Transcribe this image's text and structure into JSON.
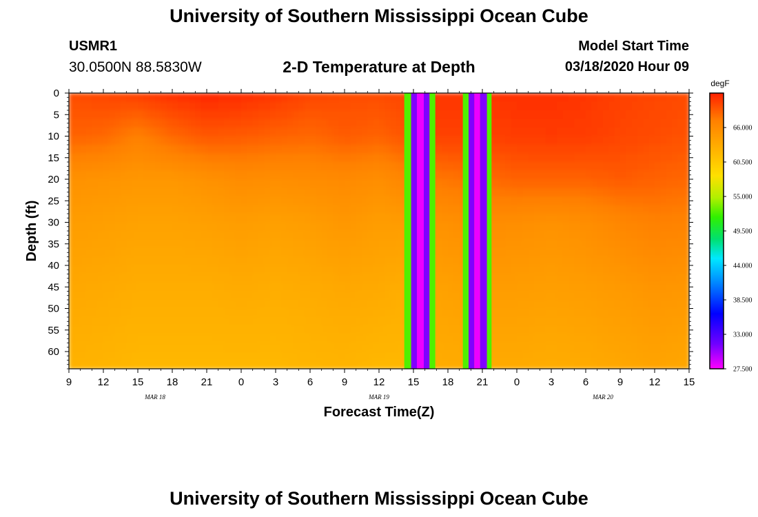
{
  "header": {
    "title": "University of Southern Mississippi Ocean Cube",
    "station_id": "USMR1",
    "station_coords": "30.0500N 88.5830W",
    "plot_title": "2-D Temperature at Depth",
    "model_start_label": "Model Start Time",
    "model_start_value": "03/18/2020 Hour 09"
  },
  "footer": {
    "title": "University of Southern Mississippi Ocean Cube"
  },
  "colors": {
    "background": "#ffffff",
    "colormap": [
      "#ff00ff",
      "#7000ff",
      "#0000ff",
      "#0090ff",
      "#00e8ff",
      "#00e070",
      "#30f000",
      "#b0f000",
      "#ffe000",
      "#ffb000",
      "#ff8000",
      "#ff2000"
    ]
  },
  "chart_data": {
    "type": "heatmap",
    "title": "2-D Temperature at Depth",
    "xlabel": "Forecast Time(Z)",
    "ylabel": "Depth (ft)",
    "x_start_hour": 9,
    "x_range_hours": [
      0,
      54
    ],
    "x_ticks": [
      {
        "h": 0,
        "label": "9"
      },
      {
        "h": 3,
        "label": "12"
      },
      {
        "h": 6,
        "label": "15"
      },
      {
        "h": 9,
        "label": "18"
      },
      {
        "h": 12,
        "label": "21"
      },
      {
        "h": 15,
        "label": "0"
      },
      {
        "h": 18,
        "label": "3"
      },
      {
        "h": 21,
        "label": "6"
      },
      {
        "h": 24,
        "label": "9"
      },
      {
        "h": 27,
        "label": "12"
      },
      {
        "h": 30,
        "label": "15"
      },
      {
        "h": 33,
        "label": "18"
      },
      {
        "h": 36,
        "label": "21"
      },
      {
        "h": 39,
        "label": "0"
      },
      {
        "h": 42,
        "label": "3"
      },
      {
        "h": 45,
        "label": "6"
      },
      {
        "h": 48,
        "label": "9"
      },
      {
        "h": 51,
        "label": "12"
      },
      {
        "h": 54,
        "label": "15"
      }
    ],
    "date_labels": [
      {
        "h": 7.5,
        "label": "MAR 18"
      },
      {
        "h": 27,
        "label": "MAR 19"
      },
      {
        "h": 46.5,
        "label": "MAR 20"
      }
    ],
    "y_range": [
      0,
      64
    ],
    "y_ticks": [
      0,
      5,
      10,
      15,
      20,
      25,
      30,
      35,
      40,
      45,
      50,
      55,
      60
    ],
    "colorbar": {
      "unit": "degF",
      "min": 27.5,
      "max": 71.5,
      "labels": [
        "66.000",
        "60.500",
        "55.000",
        "49.500",
        "44.000",
        "38.500",
        "33.000",
        "27.500"
      ]
    },
    "profile_depths_ft": [
      0,
      10,
      20,
      30,
      45,
      64
    ],
    "columns": [
      {
        "h": 0,
        "v": [
          69.5,
          68.5,
          65.5,
          64.5,
          63.5,
          62.5
        ]
      },
      {
        "h": 3,
        "v": [
          69.8,
          68.2,
          65.3,
          64.3,
          63.3,
          62.3
        ]
      },
      {
        "h": 6,
        "v": [
          70.2,
          67.0,
          65.0,
          64.0,
          63.0,
          62.0
        ]
      },
      {
        "h": 9,
        "v": [
          70.8,
          68.2,
          65.0,
          64.0,
          63.0,
          62.0
        ]
      },
      {
        "h": 12,
        "v": [
          71.2,
          69.0,
          65.5,
          64.2,
          63.0,
          62.0
        ]
      },
      {
        "h": 15,
        "v": [
          71.0,
          68.8,
          66.0,
          64.5,
          63.2,
          62.0
        ]
      },
      {
        "h": 18,
        "v": [
          70.5,
          68.5,
          65.8,
          64.2,
          63.0,
          62.0
        ]
      },
      {
        "h": 21,
        "v": [
          69.8,
          68.2,
          66.0,
          64.5,
          63.2,
          62.2
        ]
      },
      {
        "h": 24,
        "v": [
          69.5,
          68.8,
          66.2,
          65.0,
          63.5,
          62.3
        ]
      },
      {
        "h": 27,
        "v": [
          69.5,
          68.5,
          65.8,
          64.5,
          63.3,
          62.0
        ]
      },
      {
        "h": 29,
        "v": [
          69.8,
          69.0,
          66.5,
          64.5,
          63.0,
          62.0
        ]
      },
      {
        "h": 32,
        "v": [
          70.5,
          70.0,
          67.5,
          65.5,
          64.0,
          63.0
        ]
      },
      {
        "h": 36,
        "v": [
          70.5,
          70.0,
          68.0,
          66.0,
          64.5,
          63.2
        ]
      },
      {
        "h": 39,
        "v": [
          70.8,
          70.2,
          68.5,
          65.8,
          64.5,
          63.2
        ]
      },
      {
        "h": 42,
        "v": [
          70.8,
          70.3,
          68.5,
          65.5,
          64.3,
          63.0
        ]
      },
      {
        "h": 45,
        "v": [
          70.5,
          70.2,
          68.5,
          65.8,
          64.5,
          63.2
        ]
      },
      {
        "h": 48,
        "v": [
          70.0,
          69.8,
          68.8,
          66.5,
          64.8,
          63.5
        ]
      },
      {
        "h": 51,
        "v": [
          69.8,
          69.5,
          68.5,
          67.0,
          65.2,
          63.8
        ]
      },
      {
        "h": 54,
        "v": [
          69.5,
          69.2,
          68.2,
          66.8,
          65.0,
          63.5
        ]
      }
    ],
    "stripes": [
      {
        "h0": 29.2,
        "h1": 29.8,
        "v": 52.5
      },
      {
        "h0": 29.8,
        "h1": 30.3,
        "v": 31.0
      },
      {
        "h0": 30.3,
        "h1": 30.9,
        "v": 28.0
      },
      {
        "h0": 30.9,
        "h1": 31.4,
        "v": 31.0
      },
      {
        "h0": 31.4,
        "h1": 31.9,
        "v": 52.5
      },
      {
        "h0": 34.3,
        "h1": 34.8,
        "v": 52.5
      },
      {
        "h0": 34.8,
        "h1": 35.3,
        "v": 31.0
      },
      {
        "h0": 35.3,
        "h1": 35.8,
        "v": 28.0
      },
      {
        "h0": 35.8,
        "h1": 36.4,
        "v": 31.0
      },
      {
        "h0": 36.4,
        "h1": 36.8,
        "v": 52.5
      }
    ]
  }
}
